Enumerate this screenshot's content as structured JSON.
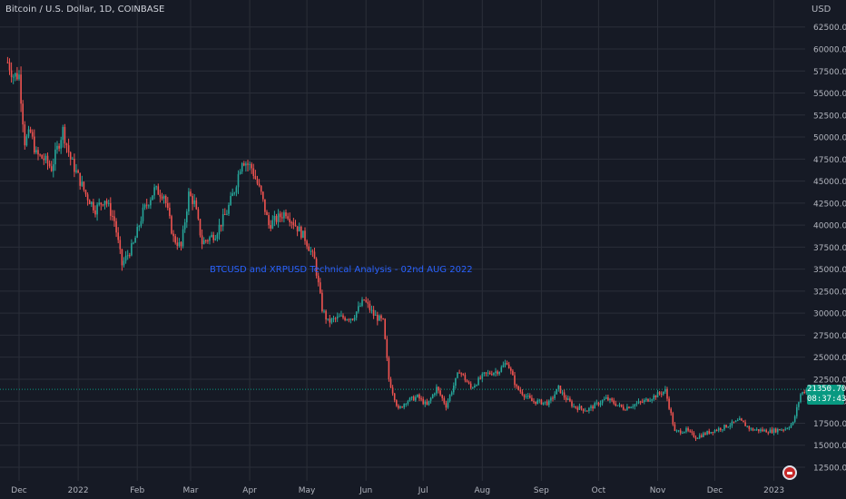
{
  "header": {
    "symbol_title": "Bitcoin / U.S. Dollar, 1D, COINBASE",
    "currency": "USD"
  },
  "annotation": "BTCUSD and XRPUSD Technical Analysis - 02nd AUG 2022",
  "price_tag": {
    "price": "21350.70",
    "countdown": "08:37:43"
  },
  "colors": {
    "background": "#161a25",
    "grid": "#2a2e39",
    "up": "#26a69a",
    "down": "#ef5350",
    "text": "#b2b5be",
    "annotation": "#2962ff",
    "price_tag": "#089981"
  },
  "icons": {
    "logo": "flag-badge-icon"
  },
  "chart_data": {
    "type": "candlestick",
    "title": "Bitcoin / U.S. Dollar, 1D, COINBASE",
    "y_unit": "USD",
    "y_ticks": [
      "62500.00",
      "60000.00",
      "57500.00",
      "55000.00",
      "52500.00",
      "50000.00",
      "47500.00",
      "45000.00",
      "42500.00",
      "40000.00",
      "37500.00",
      "35000.00",
      "32500.00",
      "30000.00",
      "27500.00",
      "25000.00",
      "22500.00",
      "20000.00",
      "17500.00",
      "15000.00",
      "12500.00"
    ],
    "x_ticks": [
      "Dec",
      "2022",
      "Feb",
      "Mar",
      "Apr",
      "May",
      "Jun",
      "Jul",
      "Aug",
      "Sep",
      "Oct",
      "Nov",
      "Dec",
      "2023"
    ],
    "ylim": [
      11500,
      64000
    ],
    "grid": true,
    "last_price": 21350.7,
    "price_path": [
      [
        "2021-11-25",
        58500
      ],
      [
        "2021-11-28",
        57000
      ],
      [
        "2021-12-01",
        57000
      ],
      [
        "2021-12-04",
        49500
      ],
      [
        "2021-12-07",
        50500
      ],
      [
        "2021-12-10",
        48000
      ],
      [
        "2021-12-14",
        47500
      ],
      [
        "2021-12-18",
        46500
      ],
      [
        "2021-12-24",
        50800
      ],
      [
        "2021-12-28",
        47500
      ],
      [
        "2022-01-05",
        43500
      ],
      [
        "2022-01-10",
        41800
      ],
      [
        "2022-01-15",
        43000
      ],
      [
        "2022-01-20",
        40500
      ],
      [
        "2022-01-24",
        35500
      ],
      [
        "2022-01-30",
        37800
      ],
      [
        "2022-02-04",
        41500
      ],
      [
        "2022-02-10",
        44000
      ],
      [
        "2022-02-15",
        43500
      ],
      [
        "2022-02-20",
        38500
      ],
      [
        "2022-02-24",
        37500
      ],
      [
        "2022-02-28",
        43500
      ],
      [
        "2022-03-03",
        42500
      ],
      [
        "2022-03-07",
        38000
      ],
      [
        "2022-03-14",
        39000
      ],
      [
        "2022-03-20",
        41500
      ],
      [
        "2022-03-24",
        44000
      ],
      [
        "2022-03-28",
        47500
      ],
      [
        "2022-04-02",
        46500
      ],
      [
        "2022-04-07",
        43500
      ],
      [
        "2022-04-11",
        40000
      ],
      [
        "2022-04-20",
        41500
      ],
      [
        "2022-04-25",
        40000
      ],
      [
        "2022-04-30",
        38500
      ],
      [
        "2022-05-05",
        36000
      ],
      [
        "2022-05-09",
        30500
      ],
      [
        "2022-05-12",
        29000
      ],
      [
        "2022-05-18",
        29500
      ],
      [
        "2022-05-25",
        29500
      ],
      [
        "2022-05-31",
        31500
      ],
      [
        "2022-06-05",
        29800
      ],
      [
        "2022-06-10",
        29000
      ],
      [
        "2022-06-13",
        22500
      ],
      [
        "2022-06-18",
        19000
      ],
      [
        "2022-06-22",
        20000
      ],
      [
        "2022-06-28",
        20500
      ],
      [
        "2022-07-03",
        19500
      ],
      [
        "2022-07-08",
        21500
      ],
      [
        "2022-07-13",
        19500
      ],
      [
        "2022-07-20",
        23500
      ],
      [
        "2022-07-26",
        21500
      ],
      [
        "2022-08-02",
        23000
      ],
      [
        "2022-08-10",
        23500
      ],
      [
        "2022-08-14",
        24500
      ],
      [
        "2022-08-19",
        21500
      ],
      [
        "2022-08-27",
        20000
      ],
      [
        "2022-09-05",
        19800
      ],
      [
        "2022-09-10",
        21500
      ],
      [
        "2022-09-13",
        20500
      ],
      [
        "2022-09-18",
        19400
      ],
      [
        "2022-09-25",
        19000
      ],
      [
        "2022-10-05",
        20300
      ],
      [
        "2022-10-14",
        19200
      ],
      [
        "2022-10-25",
        20000
      ],
      [
        "2022-11-05",
        21200
      ],
      [
        "2022-11-08",
        18500
      ],
      [
        "2022-11-10",
        16500
      ],
      [
        "2022-11-16",
        16700
      ],
      [
        "2022-11-21",
        15900
      ],
      [
        "2022-11-28",
        16500
      ],
      [
        "2022-12-05",
        17000
      ],
      [
        "2022-12-14",
        17800
      ],
      [
        "2022-12-20",
        16800
      ],
      [
        "2022-12-30",
        16600
      ],
      [
        "2023-01-07",
        16900
      ],
      [
        "2023-01-11",
        17500
      ],
      [
        "2023-01-15",
        20800
      ],
      [
        "2023-01-18",
        21350
      ]
    ]
  }
}
